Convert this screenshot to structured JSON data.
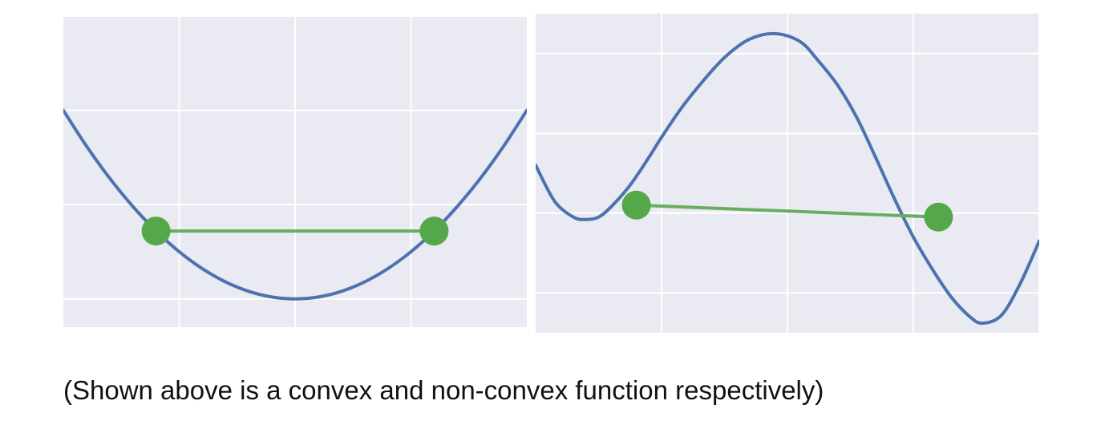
{
  "caption": "(Shown above is a convex and non-convex function respectively)",
  "colors": {
    "background": "#eaeaf2",
    "grid": "#ffffff",
    "curve": "#4c72b0",
    "points": "#55a84a",
    "chord": "#6aad62"
  },
  "chart_data": [
    {
      "type": "line",
      "grid": true,
      "title": "",
      "xlim": [
        -2,
        2
      ],
      "ylim": [
        -0.15,
        1.5
      ],
      "xticks": [
        -1,
        0,
        1
      ],
      "yticks": [
        0,
        0.5,
        1,
        1.5
      ],
      "series": [
        {
          "x": [
            -2,
            -1.8,
            -1.6,
            -1.4,
            -1.2,
            -1,
            -0.8,
            -0.6,
            -0.4,
            -0.2,
            0,
            0.2,
            0.4,
            0.6,
            0.8,
            1,
            1.2,
            1.4,
            1.6,
            1.8,
            2
          ],
          "y": [
            1,
            0.81,
            0.64,
            0.49,
            0.36,
            0.25,
            0.16,
            0.09,
            0.04,
            0.01,
            0,
            0.01,
            0.04,
            0.09,
            0.16,
            0.25,
            0.36,
            0.49,
            0.64,
            0.81,
            1
          ]
        }
      ],
      "points": [
        {
          "x": -1.2,
          "y": 0.36
        },
        {
          "x": 1.2,
          "y": 0.36
        }
      ]
    },
    {
      "type": "line",
      "grid": true,
      "title": "",
      "xlim": [
        -3,
        5
      ],
      "ylim": [
        -0.5,
        3.5
      ],
      "xticks": [
        -1,
        1,
        3,
        5
      ],
      "yticks": [
        0,
        1,
        2,
        3
      ],
      "series": [
        {
          "x": [
            -3,
            -2.7,
            -2.4,
            -2.2,
            -2,
            -1.8,
            -1.5,
            -1.2,
            -1,
            -0.7,
            -0.4,
            0,
            0.4,
            0.8,
            1.2,
            1.5,
            1.8,
            2.1,
            2.4,
            2.7,
            3,
            3.3,
            3.6,
            3.9,
            4.1,
            4.4,
            4.7,
            5
          ],
          "y": [
            1.6,
            1.15,
            0.95,
            0.92,
            0.95,
            1.08,
            1.35,
            1.7,
            1.95,
            2.3,
            2.6,
            2.95,
            3.18,
            3.25,
            3.15,
            2.9,
            2.6,
            2.2,
            1.7,
            1.18,
            0.7,
            0.3,
            -0.05,
            -0.3,
            -0.38,
            -0.28,
            0.12,
            0.65
          ]
        }
      ],
      "points": [
        {
          "x": -1.4,
          "y": 1.1
        },
        {
          "x": 3.4,
          "y": 0.95
        }
      ]
    }
  ]
}
